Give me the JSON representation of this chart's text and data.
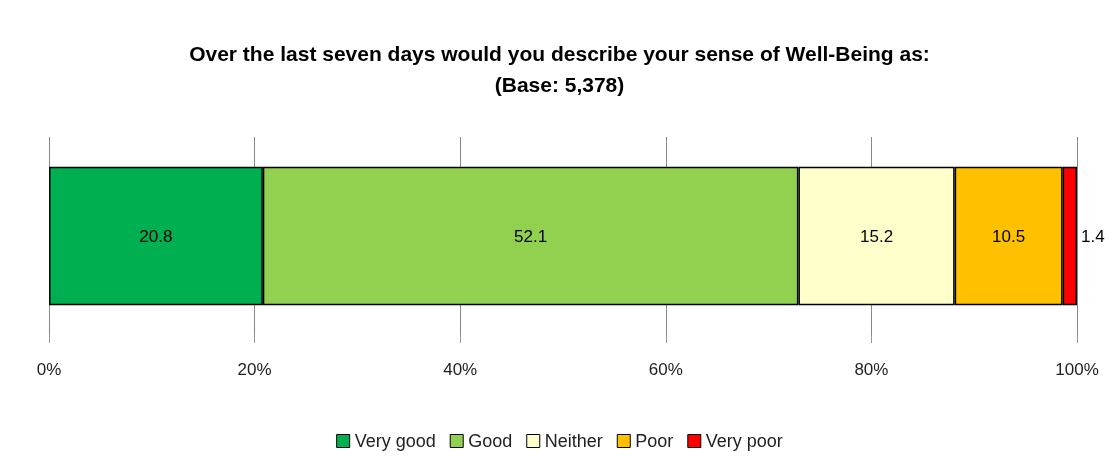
{
  "chart_data": {
    "type": "bar",
    "orientation": "horizontal",
    "stacked": true,
    "title": "Over the last seven days would you describe your sense of Well-Being as:",
    "subtitle": "(Base: 5,378)",
    "categories": [
      null
    ],
    "series": [
      {
        "name": "Very good",
        "color": "#00b050",
        "values": [
          20.8
        ]
      },
      {
        "name": "Good",
        "color": "#92d050",
        "values": [
          52.1
        ]
      },
      {
        "name": "Neither",
        "color": "#ffffcc",
        "values": [
          15.2
        ]
      },
      {
        "name": "Poor",
        "color": "#ffc000",
        "values": [
          10.5
        ]
      },
      {
        "name": "Very poor",
        "color": "#ff0000",
        "values": [
          1.4
        ]
      }
    ],
    "xlim": [
      0,
      100
    ],
    "xticks": [
      {
        "value": 0,
        "label": "0%"
      },
      {
        "value": 20,
        "label": "20%"
      },
      {
        "value": 40,
        "label": "40%"
      },
      {
        "value": 60,
        "label": "60%"
      },
      {
        "value": 80,
        "label": "80%"
      },
      {
        "value": 100,
        "label": "100%"
      }
    ],
    "grid": "x",
    "legend": "bottom",
    "data_labels": true
  }
}
